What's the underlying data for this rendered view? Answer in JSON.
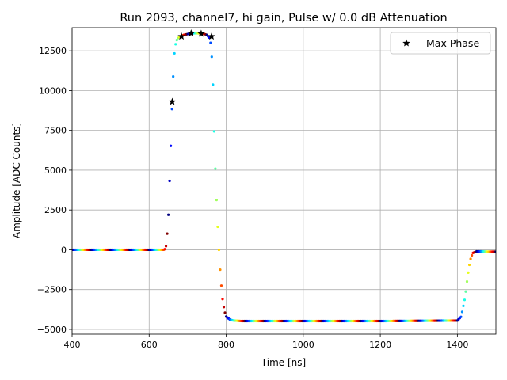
{
  "chart_data": {
    "type": "scatter",
    "title": "Run 2093, channel7, hi gain, Pulse w/ 0.0 dB Attenuation",
    "xlabel": "Time [ns]",
    "ylabel": "Amplitude [ADC Counts]",
    "xlim": [
      400,
      1500
    ],
    "ylim": [
      -5300,
      13950
    ],
    "xticks": [
      400,
      600,
      800,
      1000,
      1200,
      1400
    ],
    "xtick_labels": [
      "400",
      "600",
      "800",
      "1000",
      "1200",
      "1400"
    ],
    "yticks": [
      -5000,
      -2500,
      0,
      2500,
      5000,
      7500,
      10000,
      12500
    ],
    "ytick_labels": [
      "−5000",
      "−2500",
      "0",
      "2500",
      "5000",
      "7500",
      "10000",
      "12500"
    ],
    "grid": true,
    "legend_position": "top-right",
    "series": [
      {
        "name": "",
        "style": "colored-dots",
        "colormap": "jet",
        "sample_interval_ns": 3.125,
        "phase_count": 16,
        "waveform_x": [
          400,
          640,
          645,
          650,
          655,
          660,
          663,
          666,
          670,
          675,
          680,
          690,
          700,
          710,
          720,
          730,
          740,
          750,
          757,
          761,
          765,
          768,
          772,
          776,
          780,
          785,
          790,
          795,
          800,
          810,
          820,
          840,
          900,
          1000,
          1200,
          1400,
          1410,
          1420,
          1425,
          1430,
          1435,
          1440,
          1450,
          1460,
          1480,
          1500
        ],
        "waveform_y": [
          0,
          0,
          300,
          2200,
          5600,
          9300,
          11200,
          12500,
          13100,
          13300,
          13400,
          13500,
          13550,
          13600,
          13600,
          13600,
          13580,
          13500,
          13300,
          12800,
          11000,
          8000,
          5000,
          2500,
          500,
          -1500,
          -3000,
          -3800,
          -4200,
          -4400,
          -4450,
          -4480,
          -4480,
          -4480,
          -4480,
          -4450,
          -4200,
          -3000,
          -2000,
          -1100,
          -500,
          -200,
          -100,
          -100,
          -120,
          -120
        ]
      },
      {
        "name": "Max Phase",
        "style": "star",
        "color": "#000000",
        "x": [
          660,
          684,
          709,
          735,
          762
        ],
        "y": [
          9300,
          13400,
          13600,
          13580,
          13400
        ]
      }
    ]
  }
}
